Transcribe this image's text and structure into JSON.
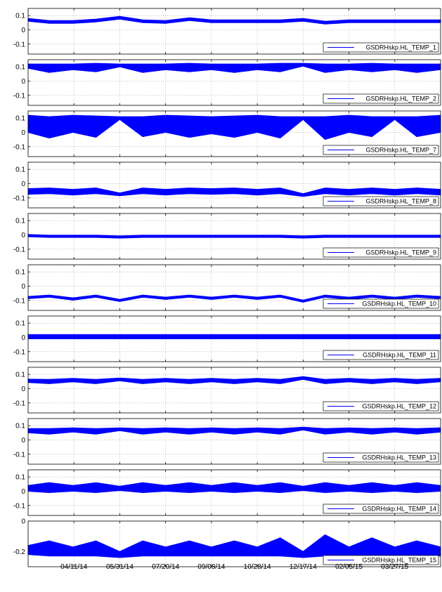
{
  "chart_data": {
    "type": "line",
    "x_axis": {
      "type": "date",
      "range": [
        "2014-02-20",
        "2015-05-16"
      ],
      "tick_labels": [
        "04/11/14",
        "05/31/14",
        "07/20/14",
        "09/08/14",
        "10/28/14",
        "12/17/14",
        "02/05/15",
        "03/27/15"
      ]
    },
    "grid": true,
    "legend_position": "bottom-right",
    "series_color": "#0000ff",
    "rendering": "dense band (value ± amplitude)",
    "panels": [
      {
        "name": "GSDRHskp.HL_TEMP_1",
        "ylim": [
          -0.17,
          0.15
        ],
        "yticks": [
          "0.1",
          "0",
          "-0.1"
        ],
        "x": [
          "2014-02-20",
          "2014-03-15",
          "2014-04-10",
          "2014-05-05",
          "2014-05-31",
          "2014-06-25",
          "2014-07-20",
          "2014-08-15",
          "2014-09-08",
          "2014-10-03",
          "2014-10-28",
          "2014-11-22",
          "2014-12-17",
          "2015-01-10",
          "2015-02-05",
          "2015-03-02",
          "2015-03-27",
          "2015-04-20",
          "2015-05-16"
        ],
        "values": [
          0.07,
          0.055,
          0.055,
          0.065,
          0.085,
          0.06,
          0.055,
          0.075,
          0.06,
          0.06,
          0.06,
          0.06,
          0.07,
          0.05,
          0.06,
          0.06,
          0.06,
          0.06,
          0.06
        ],
        "amplitude": [
          0.01,
          0.01,
          0.01,
          0.01,
          0.01,
          0.01,
          0.01,
          0.01,
          0.01,
          0.01,
          0.01,
          0.01,
          0.01,
          0.01,
          0.01,
          0.01,
          0.01,
          0.01,
          0.01
        ]
      },
      {
        "name": "GSDRHskp.HL_TEMP_2",
        "ylim": [
          -0.17,
          0.15
        ],
        "yticks": [
          "0.1",
          "0",
          "-0.1"
        ],
        "x": [
          "2014-02-20",
          "2014-03-15",
          "2014-04-10",
          "2014-05-05",
          "2014-05-31",
          "2014-06-25",
          "2014-07-20",
          "2014-08-15",
          "2014-09-08",
          "2014-10-03",
          "2014-10-28",
          "2014-11-22",
          "2014-12-17",
          "2015-01-10",
          "2015-02-05",
          "2015-03-02",
          "2015-03-27",
          "2015-04-20",
          "2015-05-16"
        ],
        "values": [
          0.105,
          0.09,
          0.1,
          0.095,
          0.11,
          0.09,
          0.1,
          0.095,
          0.1,
          0.09,
          0.1,
          0.095,
          0.115,
          0.09,
          0.1,
          0.095,
          0.1,
          0.09,
          0.1
        ],
        "amplitude": [
          0.015,
          0.03,
          0.02,
          0.03,
          0.01,
          0.03,
          0.02,
          0.03,
          0.02,
          0.03,
          0.02,
          0.03,
          0.01,
          0.03,
          0.02,
          0.03,
          0.02,
          0.03,
          0.02
        ]
      },
      {
        "name": "GSDRHskp.HL_TEMP_7",
        "ylim": [
          -0.17,
          0.15
        ],
        "yticks": [
          "0.1",
          "0",
          "-0.1"
        ],
        "x": [
          "2014-02-20",
          "2014-03-15",
          "2014-04-10",
          "2014-05-05",
          "2014-05-31",
          "2014-06-25",
          "2014-07-20",
          "2014-08-15",
          "2014-09-08",
          "2014-10-03",
          "2014-10-28",
          "2014-11-22",
          "2014-12-17",
          "2015-01-10",
          "2015-02-05",
          "2015-03-02",
          "2015-03-27",
          "2015-04-20",
          "2015-05-16"
        ],
        "values": [
          0.06,
          0.035,
          0.06,
          0.04,
          0.1,
          0.04,
          0.06,
          0.04,
          0.05,
          0.04,
          0.06,
          0.035,
          0.1,
          0.03,
          0.06,
          0.04,
          0.1,
          0.04,
          0.06
        ],
        "amplitude": [
          0.06,
          0.075,
          0.06,
          0.075,
          0.01,
          0.07,
          0.06,
          0.075,
          0.06,
          0.075,
          0.06,
          0.075,
          0.01,
          0.08,
          0.06,
          0.07,
          0.01,
          0.07,
          0.06
        ]
      },
      {
        "name": "GSDRHskp.HL_TEMP_8",
        "ylim": [
          -0.17,
          0.15
        ],
        "yticks": [
          "0.1",
          "0",
          "-0.1"
        ],
        "x": [
          "2014-02-20",
          "2014-03-15",
          "2014-04-10",
          "2014-05-05",
          "2014-05-31",
          "2014-06-25",
          "2014-07-20",
          "2014-08-15",
          "2014-09-08",
          "2014-10-03",
          "2014-10-28",
          "2014-11-22",
          "2014-12-17",
          "2015-01-10",
          "2015-02-05",
          "2015-03-02",
          "2015-03-27",
          "2015-04-20",
          "2015-05-16"
        ],
        "values": [
          -0.055,
          -0.05,
          -0.06,
          -0.05,
          -0.075,
          -0.05,
          -0.06,
          -0.05,
          -0.055,
          -0.05,
          -0.06,
          -0.05,
          -0.08,
          -0.05,
          -0.06,
          -0.05,
          -0.06,
          -0.05,
          -0.06
        ],
        "amplitude": [
          0.02,
          0.02,
          0.02,
          0.02,
          0.01,
          0.02,
          0.02,
          0.02,
          0.02,
          0.02,
          0.02,
          0.02,
          0.01,
          0.02,
          0.02,
          0.02,
          0.02,
          0.02,
          0.02
        ]
      },
      {
        "name": "GSDRHskp.HL_TEMP_9",
        "ylim": [
          -0.17,
          0.15
        ],
        "yticks": [
          "0.1",
          "0",
          "-0.1"
        ],
        "x": [
          "2014-02-20",
          "2014-03-15",
          "2014-04-10",
          "2014-05-05",
          "2014-05-31",
          "2014-06-25",
          "2014-07-20",
          "2014-08-15",
          "2014-09-08",
          "2014-10-03",
          "2014-10-28",
          "2014-11-22",
          "2014-12-17",
          "2015-01-10",
          "2015-02-05",
          "2015-03-02",
          "2015-03-27",
          "2015-04-20",
          "2015-05-16"
        ],
        "values": [
          -0.005,
          -0.01,
          -0.01,
          -0.01,
          -0.015,
          -0.01,
          -0.01,
          -0.01,
          -0.01,
          -0.01,
          -0.01,
          -0.01,
          -0.015,
          -0.01,
          -0.01,
          -0.01,
          -0.01,
          -0.01,
          -0.01
        ],
        "amplitude": [
          0.008,
          0.008,
          0.008,
          0.008,
          0.008,
          0.008,
          0.008,
          0.008,
          0.008,
          0.008,
          0.008,
          0.008,
          0.008,
          0.008,
          0.008,
          0.008,
          0.008,
          0.008,
          0.008
        ]
      },
      {
        "name": "GSDRHskp.HL_TEMP_10",
        "ylim": [
          -0.17,
          0.15
        ],
        "yticks": [
          "0.1",
          "0",
          "-0.1"
        ],
        "x": [
          "2014-02-20",
          "2014-03-15",
          "2014-04-10",
          "2014-05-05",
          "2014-05-31",
          "2014-06-25",
          "2014-07-20",
          "2014-08-15",
          "2014-09-08",
          "2014-10-03",
          "2014-10-28",
          "2014-11-22",
          "2014-12-17",
          "2015-01-10",
          "2015-02-05",
          "2015-03-02",
          "2015-03-27",
          "2015-04-20",
          "2015-05-16"
        ],
        "values": [
          -0.08,
          -0.07,
          -0.09,
          -0.07,
          -0.1,
          -0.07,
          -0.085,
          -0.07,
          -0.085,
          -0.07,
          -0.085,
          -0.07,
          -0.105,
          -0.07,
          -0.085,
          -0.07,
          -0.085,
          -0.07,
          -0.08
        ],
        "amplitude": [
          0.008,
          0.008,
          0.008,
          0.008,
          0.008,
          0.008,
          0.008,
          0.008,
          0.008,
          0.008,
          0.008,
          0.008,
          0.008,
          0.008,
          0.008,
          0.008,
          0.008,
          0.008,
          0.008
        ]
      },
      {
        "name": "GSDRHskp.HL_TEMP_11",
        "ylim": [
          -0.17,
          0.15
        ],
        "yticks": [
          "0.1",
          "0",
          "-0.1"
        ],
        "x": [
          "2014-02-20",
          "2014-03-15",
          "2014-04-10",
          "2014-05-05",
          "2014-05-31",
          "2014-06-25",
          "2014-07-20",
          "2014-08-15",
          "2014-09-08",
          "2014-10-03",
          "2014-10-28",
          "2014-11-22",
          "2014-12-17",
          "2015-01-10",
          "2015-02-05",
          "2015-03-02",
          "2015-03-27",
          "2015-04-20",
          "2015-05-16"
        ],
        "values": [
          0.005,
          0.005,
          0.005,
          0.005,
          0.005,
          0.005,
          0.005,
          0.005,
          0.005,
          0.005,
          0.005,
          0.005,
          0.005,
          0.005,
          0.005,
          0.005,
          0.005,
          0.005,
          0.005
        ],
        "amplitude": [
          0.015,
          0.015,
          0.015,
          0.015,
          0.015,
          0.015,
          0.015,
          0.015,
          0.015,
          0.015,
          0.015,
          0.015,
          0.015,
          0.015,
          0.015,
          0.015,
          0.015,
          0.015,
          0.015
        ]
      },
      {
        "name": "GSDRHskp.HL_TEMP_12",
        "ylim": [
          -0.17,
          0.15
        ],
        "yticks": [
          "0.1",
          "0",
          "-0.1"
        ],
        "x": [
          "2014-02-20",
          "2014-03-15",
          "2014-04-10",
          "2014-05-05",
          "2014-05-31",
          "2014-06-25",
          "2014-07-20",
          "2014-08-15",
          "2014-09-08",
          "2014-10-03",
          "2014-10-28",
          "2014-11-22",
          "2014-12-17",
          "2015-01-10",
          "2015-02-05",
          "2015-03-02",
          "2015-03-27",
          "2015-04-20",
          "2015-05-16"
        ],
        "values": [
          0.055,
          0.05,
          0.06,
          0.05,
          0.065,
          0.05,
          0.06,
          0.05,
          0.06,
          0.05,
          0.06,
          0.05,
          0.075,
          0.05,
          0.06,
          0.05,
          0.06,
          0.05,
          0.06
        ],
        "amplitude": [
          0.012,
          0.015,
          0.012,
          0.015,
          0.01,
          0.015,
          0.012,
          0.015,
          0.012,
          0.015,
          0.012,
          0.015,
          0.01,
          0.015,
          0.012,
          0.015,
          0.012,
          0.015,
          0.012
        ]
      },
      {
        "name": "GSDRHskp.HL_TEMP_13",
        "ylim": [
          -0.17,
          0.15
        ],
        "yticks": [
          "0.1",
          "0",
          "-0.1"
        ],
        "x": [
          "2014-02-20",
          "2014-03-15",
          "2014-04-10",
          "2014-05-05",
          "2014-05-31",
          "2014-06-25",
          "2014-07-20",
          "2014-08-15",
          "2014-09-08",
          "2014-10-03",
          "2014-10-28",
          "2014-11-22",
          "2014-12-17",
          "2015-01-10",
          "2015-02-05",
          "2015-03-02",
          "2015-03-27",
          "2015-04-20",
          "2015-05-16"
        ],
        "values": [
          0.065,
          0.06,
          0.07,
          0.06,
          0.075,
          0.06,
          0.07,
          0.06,
          0.07,
          0.06,
          0.07,
          0.06,
          0.08,
          0.06,
          0.07,
          0.06,
          0.07,
          0.06,
          0.07
        ],
        "amplitude": [
          0.015,
          0.02,
          0.015,
          0.02,
          0.01,
          0.02,
          0.015,
          0.02,
          0.015,
          0.02,
          0.015,
          0.02,
          0.01,
          0.02,
          0.015,
          0.02,
          0.015,
          0.02,
          0.015
        ]
      },
      {
        "name": "GSDRHskp.HL_TEMP_14",
        "ylim": [
          -0.17,
          0.15
        ],
        "yticks": [
          "0.1",
          "0",
          "-0.1"
        ],
        "x": [
          "2014-02-20",
          "2014-03-15",
          "2014-04-10",
          "2014-05-05",
          "2014-05-31",
          "2014-06-25",
          "2014-07-20",
          "2014-08-15",
          "2014-09-08",
          "2014-10-03",
          "2014-10-28",
          "2014-11-22",
          "2014-12-17",
          "2015-01-10",
          "2015-02-05",
          "2015-03-02",
          "2015-03-27",
          "2015-04-20",
          "2015-05-16"
        ],
        "values": [
          0.02,
          0.025,
          0.02,
          0.025,
          0.02,
          0.025,
          0.02,
          0.025,
          0.02,
          0.025,
          0.02,
          0.025,
          0.02,
          0.025,
          0.02,
          0.025,
          0.02,
          0.025,
          0.02
        ],
        "amplitude": [
          0.02,
          0.035,
          0.02,
          0.035,
          0.015,
          0.035,
          0.02,
          0.035,
          0.02,
          0.035,
          0.02,
          0.035,
          0.015,
          0.035,
          0.02,
          0.035,
          0.02,
          0.035,
          0.02
        ]
      },
      {
        "name": "GSDRHskp.HL_TEMP_15",
        "ylim": [
          -0.3,
          0
        ],
        "yticks": [
          "0",
          "-0.2"
        ],
        "x": [
          "2014-02-20",
          "2014-03-15",
          "2014-04-10",
          "2014-05-05",
          "2014-05-31",
          "2014-06-25",
          "2014-07-20",
          "2014-08-15",
          "2014-09-08",
          "2014-10-03",
          "2014-10-28",
          "2014-11-22",
          "2014-12-17",
          "2015-01-10",
          "2015-02-05",
          "2015-03-02",
          "2015-03-27",
          "2015-04-20",
          "2015-05-16"
        ],
        "values": [
          -0.19,
          -0.18,
          -0.2,
          -0.18,
          -0.22,
          -0.18,
          -0.2,
          -0.18,
          -0.2,
          -0.18,
          -0.2,
          -0.17,
          -0.22,
          -0.16,
          -0.2,
          -0.17,
          -0.2,
          -0.18,
          -0.2
        ],
        "amplitude": [
          0.03,
          0.05,
          0.03,
          0.05,
          0.02,
          0.05,
          0.03,
          0.05,
          0.03,
          0.05,
          0.03,
          0.06,
          0.02,
          0.07,
          0.03,
          0.06,
          0.03,
          0.05,
          0.03
        ]
      }
    ]
  }
}
